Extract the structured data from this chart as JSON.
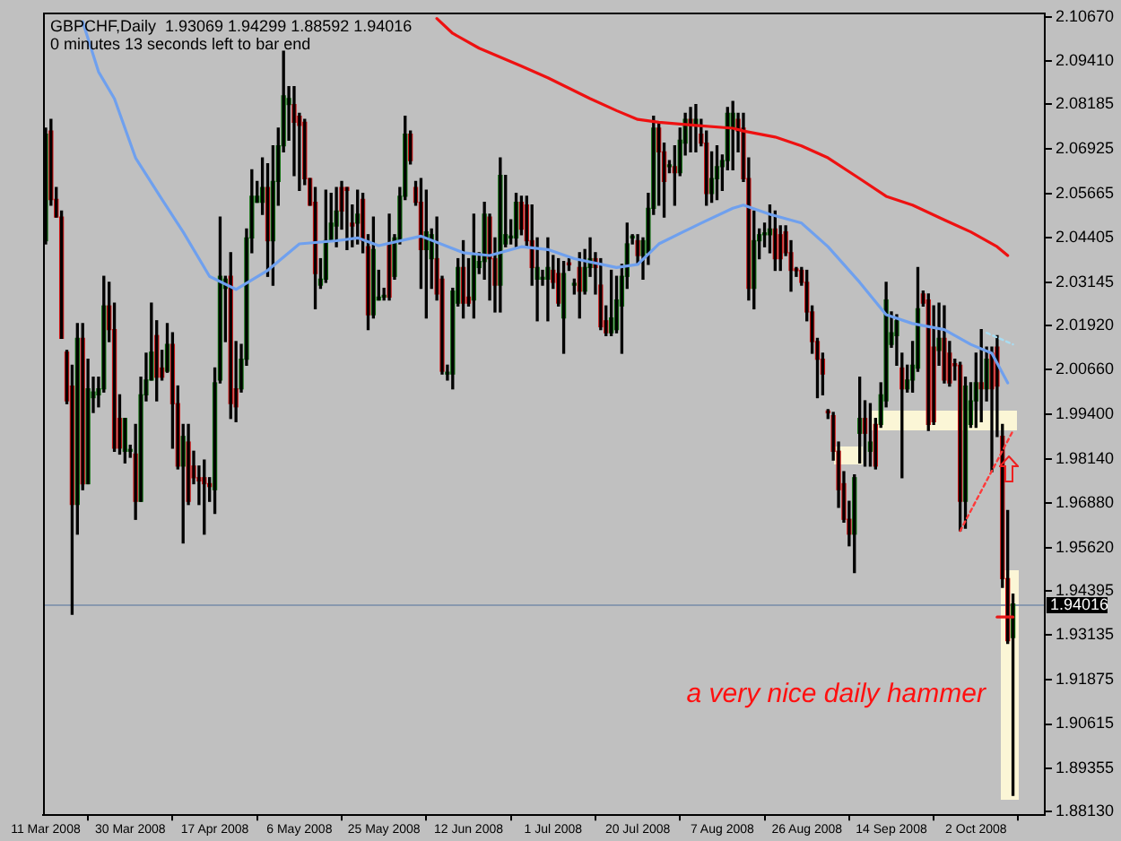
{
  "chart_data": {
    "type": "candlestick",
    "title": "GBPCHF,Daily  1.93069 1.94299 1.88592 1.94016",
    "subtitle": "0 minutes 13 seconds left to bar end",
    "categories": [
      "11 Mar 2008",
      null,
      null,
      null,
      null,
      null,
      null,
      null,
      null,
      null,
      null,
      null,
      null,
      null,
      null,
      null,
      "30 Mar 2008",
      null,
      null,
      null,
      null,
      null,
      null,
      null,
      null,
      null,
      null,
      null,
      null,
      null,
      null,
      null,
      "17 Apr 2008",
      null,
      null,
      null,
      null,
      null,
      null,
      null,
      null,
      null,
      null,
      null,
      null,
      null,
      null,
      null,
      "6 May 2008",
      null,
      null,
      null,
      null,
      null,
      null,
      null,
      null,
      null,
      null,
      null,
      null,
      null,
      null,
      null,
      "25 May 2008",
      null,
      null,
      null,
      null,
      null,
      null,
      null,
      null,
      null,
      null,
      null,
      null,
      null,
      null,
      null,
      "12 Jun 2008",
      null,
      null,
      null,
      null,
      null,
      null,
      null,
      null,
      null,
      null,
      null,
      null,
      null,
      null,
      null,
      "1 Jul 2008",
      null,
      null,
      null,
      null,
      null,
      null,
      null,
      null,
      null,
      null,
      null,
      null,
      null,
      null,
      null,
      "20 Jul 2008",
      null,
      null,
      null,
      null,
      null,
      null,
      null,
      null,
      null,
      null,
      null,
      null,
      null,
      null,
      null,
      "7 Aug 2008",
      null,
      null,
      null,
      null,
      null,
      null,
      null,
      null,
      null,
      null,
      null,
      null,
      null,
      null,
      null,
      "26 Aug 2008",
      null,
      null,
      null,
      null,
      null,
      null,
      null,
      null,
      null,
      null,
      null,
      null,
      null,
      null,
      null,
      "14 Sep 2008",
      null,
      null,
      null,
      null,
      null,
      null,
      null,
      null,
      null,
      null,
      null,
      null,
      null,
      null,
      null,
      "2 Oct 2008",
      null,
      null,
      null,
      null,
      null,
      null,
      null
    ],
    "ohlc": [
      [
        2.0432,
        2.0751,
        2.0423,
        2.0734
      ],
      [
        2.0743,
        2.0776,
        2.0533,
        2.0549
      ],
      [
        2.0549,
        2.0583,
        2.0499,
        2.0499
      ],
      [
        2.0499,
        2.0516,
        2.0155,
        2.0155
      ],
      [
        2.0116,
        2.0121,
        1.997,
        1.9978
      ],
      [
        2.002,
        2.0079,
        1.9373,
        1.9684
      ],
      [
        1.9684,
        2.0197,
        1.96,
        2.0155
      ],
      [
        2.0155,
        2.0197,
        1.9726,
        1.9743
      ],
      [
        1.9743,
        2.0096,
        1.9743,
        2.0012
      ],
      [
        1.9987,
        2.0045,
        1.9945,
        2.0003
      ],
      [
        1.9995,
        2.0045,
        1.9961,
        2.0012
      ],
      [
        2.0012,
        2.0331,
        2.0003,
        2.0247
      ],
      [
        2.0247,
        2.0314,
        2.0146,
        2.018
      ],
      [
        2.018,
        2.0255,
        1.9835,
        1.9844
      ],
      [
        1.9928,
        1.9995,
        1.9827,
        1.9844
      ],
      [
        1.9835,
        1.9928,
        1.9802,
        1.9928
      ],
      [
        1.9835,
        1.9852,
        1.9818,
        1.9838
      ],
      [
        1.9827,
        1.9911,
        1.9642,
        1.9693
      ],
      [
        1.9693,
        2.0045,
        1.9693,
        1.9995
      ],
      [
        1.9995,
        2.0113,
        1.9978,
        2.0037
      ],
      [
        2.0037,
        2.0255,
        2.0037,
        2.0116
      ],
      [
        2.0163,
        2.0205,
        1.9978,
        2.0045
      ],
      [
        2.0071,
        2.0121,
        2.0037,
        2.0045
      ],
      [
        2.0062,
        2.0197,
        2.0059,
        2.0138
      ],
      [
        2.0138,
        2.0171,
        1.9844,
        1.997
      ],
      [
        1.997,
        2.002,
        1.9785,
        1.9793
      ],
      [
        1.9793,
        1.9911,
        1.9575,
        1.9877
      ],
      [
        1.9861,
        1.9911,
        1.9684,
        1.9693
      ],
      [
        1.9793,
        1.9835,
        1.9743,
        1.976
      ],
      [
        1.976,
        1.9793,
        1.9684,
        1.9751
      ],
      [
        1.976,
        1.981,
        1.96,
        1.9743
      ],
      [
        1.9743,
        1.976,
        1.9693,
        1.9735
      ],
      [
        1.9726,
        2.0071,
        1.9659,
        2.0029
      ],
      [
        2.0037,
        2.0499,
        2.0029,
        2.0331
      ],
      [
        2.0297,
        2.0331,
        2.0146,
        2.0323
      ],
      [
        2.0331,
        2.0398,
        1.9928,
        1.997
      ],
      [
        2.0012,
        2.0146,
        1.9919,
        1.9961
      ],
      [
        2.0012,
        2.0138,
        2.0003,
        2.0096
      ],
      [
        2.0096,
        2.0465,
        2.0079,
        2.044
      ],
      [
        2.044,
        2.0633,
        2.0398,
        2.0558
      ],
      [
        2.0541,
        2.06,
        2.0541,
        2.0558
      ],
      [
        2.0541,
        2.0667,
        2.0507,
        2.0583
      ],
      [
        2.0583,
        2.065,
        2.0331,
        2.0432
      ],
      [
        2.0432,
        2.0701,
        2.0306,
        2.06
      ],
      [
        2.06,
        2.0751,
        2.0533,
        2.0701
      ],
      [
        2.0701,
        2.0969,
        2.0684,
        2.0843
      ],
      [
        2.0818,
        2.0869,
        2.0717,
        2.0835
      ],
      [
        2.0818,
        2.0869,
        2.0617,
        2.0768
      ],
      [
        2.0785,
        2.0793,
        2.0575,
        2.0759
      ],
      [
        2.0768,
        2.0776,
        2.0591,
        2.0608
      ],
      [
        2.0608,
        2.0608,
        2.0533,
        2.0533
      ],
      [
        2.0541,
        2.0583,
        2.0239,
        2.0339
      ],
      [
        2.0306,
        2.0381,
        2.0297,
        2.0323
      ],
      [
        2.0323,
        2.0575,
        2.0314,
        2.0432
      ],
      [
        2.0432,
        2.0566,
        2.0432,
        2.0482
      ],
      [
        2.0474,
        2.0583,
        2.0415,
        2.0516
      ],
      [
        2.0583,
        2.06,
        2.0465,
        2.0516
      ],
      [
        2.0583,
        2.0583,
        2.0407,
        2.0575
      ],
      [
        2.0482,
        2.0533,
        2.0415,
        2.0474
      ],
      [
        2.0482,
        2.0575,
        2.0423,
        2.0507
      ],
      [
        2.0549,
        2.0566,
        2.0398,
        2.0432
      ],
      [
        2.0415,
        2.0449,
        2.018,
        2.0222
      ],
      [
        2.0222,
        2.0499,
        2.0213,
        2.0407
      ],
      [
        2.0264,
        2.0348,
        2.0264,
        2.0272
      ],
      [
        2.0272,
        2.0297,
        2.0264,
        2.0273
      ],
      [
        2.0423,
        2.0507,
        2.0264,
        2.0272
      ],
      [
        2.0331,
        2.0449,
        2.0323,
        2.044
      ],
      [
        2.0432,
        2.0583,
        2.0423,
        2.0558
      ],
      [
        2.0558,
        2.0785,
        2.0549,
        2.0734
      ],
      [
        2.0734,
        2.0743,
        2.065,
        2.0659
      ],
      [
        2.0583,
        2.06,
        2.0533,
        2.0541
      ],
      [
        2.0541,
        2.0608,
        2.0297,
        2.0407
      ],
      [
        2.0407,
        2.0575,
        2.0213,
        2.0457
      ],
      [
        2.0381,
        2.0465,
        2.0297,
        2.0449
      ],
      [
        2.0381,
        2.0499,
        2.0264,
        2.0281
      ],
      [
        2.0323,
        2.0331,
        2.0054,
        2.0062
      ],
      [
        2.0054,
        2.0079,
        2.0037,
        2.0056
      ],
      [
        2.0054,
        2.0297,
        2.0012,
        2.0289
      ],
      [
        2.0255,
        2.0381,
        2.0247,
        2.0356
      ],
      [
        2.0356,
        2.0432,
        2.0213,
        2.0255
      ],
      [
        2.0272,
        2.0381,
        2.0247,
        2.0255
      ],
      [
        2.0264,
        2.0507,
        2.0213,
        2.039
      ],
      [
        2.0356,
        2.0398,
        2.0339,
        2.0373
      ],
      [
        2.0373,
        2.0541,
        2.0323,
        2.0507
      ],
      [
        2.0499,
        2.0507,
        2.0264,
        2.0381
      ],
      [
        2.0381,
        2.044,
        2.023,
        2.0306
      ],
      [
        2.0306,
        2.0667,
        2.023,
        2.0617
      ],
      [
        2.0423,
        2.0617,
        2.0415,
        2.0449
      ],
      [
        2.044,
        2.0491,
        2.0423,
        2.0441
      ],
      [
        2.044,
        2.0566,
        2.0415,
        2.0541
      ],
      [
        2.0541,
        2.0558,
        2.0449,
        2.0465
      ],
      [
        2.0533,
        2.0558,
        2.0415,
        2.0432
      ],
      [
        2.0432,
        2.0533,
        2.0306,
        2.0356
      ],
      [
        2.0323,
        2.044,
        2.0205,
        2.0356
      ],
      [
        2.0323,
        2.0348,
        2.0306,
        2.0324
      ],
      [
        2.0323,
        2.044,
        2.0205,
        2.0356
      ],
      [
        2.0348,
        2.039,
        2.0297,
        2.0314
      ],
      [
        2.0339,
        2.0381,
        2.0247,
        2.0255
      ],
      [
        2.0213,
        2.0373,
        2.0113,
        2.0339
      ],
      [
        2.0365,
        2.0381,
        2.0348,
        2.0364
      ],
      [
        2.0306,
        2.0323,
        2.0281,
        2.0307
      ],
      [
        2.0356,
        2.0398,
        2.0213,
        2.0289
      ],
      [
        2.0289,
        2.0407,
        2.0281,
        2.0356
      ],
      [
        2.0356,
        2.044,
        2.0331,
        2.0381
      ],
      [
        2.0381,
        2.0398,
        2.0281,
        2.0356
      ],
      [
        2.0306,
        2.0381,
        2.018,
        2.0188
      ],
      [
        2.0205,
        2.0247,
        2.0163,
        2.0171
      ],
      [
        2.0171,
        2.0348,
        2.0163,
        2.0213
      ],
      [
        2.018,
        2.0331,
        2.0171,
        2.0264
      ],
      [
        2.0247,
        2.0365,
        2.0113,
        2.0331
      ],
      [
        2.0331,
        2.0482,
        2.0297,
        2.0423
      ],
      [
        2.044,
        2.0449,
        2.0423,
        2.0441
      ],
      [
        2.0432,
        2.0449,
        2.0365,
        2.039
      ],
      [
        2.039,
        2.044,
        2.0323,
        2.0432
      ],
      [
        2.0398,
        2.0566,
        2.0365,
        2.0524
      ],
      [
        2.0524,
        2.0785,
        2.0507,
        2.0751
      ],
      [
        2.0751,
        2.0768,
        2.0533,
        2.0684
      ],
      [
        2.0684,
        2.0709,
        2.0499,
        2.06
      ],
      [
        2.0642,
        2.0659,
        2.0625,
        2.0643
      ],
      [
        2.0642,
        2.0701,
        2.0533,
        2.0625
      ],
      [
        2.0625,
        2.0751,
        2.0617,
        2.0717
      ],
      [
        2.0709,
        2.0793,
        2.0675,
        2.0776
      ],
      [
        2.0776,
        2.081,
        2.0684,
        2.0759
      ],
      [
        2.0759,
        2.0818,
        2.0684,
        2.0776
      ],
      [
        2.0734,
        2.0776,
        2.0701,
        2.0709
      ],
      [
        2.0709,
        2.0743,
        2.0533,
        2.0566
      ],
      [
        2.0566,
        2.0684,
        2.0541,
        2.0608
      ],
      [
        2.0608,
        2.0701,
        2.0549,
        2.0642
      ],
      [
        2.0642,
        2.0675,
        2.0575,
        2.0659
      ],
      [
        2.0659,
        2.081,
        2.0633,
        2.0793
      ],
      [
        2.0751,
        2.0827,
        2.0633,
        2.0793
      ],
      [
        2.0776,
        2.0793,
        2.0684,
        2.0743
      ],
      [
        2.0751,
        2.0793,
        2.06,
        2.0608
      ],
      [
        2.0608,
        2.0667,
        2.0264,
        2.0297
      ],
      [
        2.0297,
        2.0516,
        2.0239,
        2.0432
      ],
      [
        2.0432,
        2.0465,
        2.0381,
        2.0449
      ],
      [
        2.0449,
        2.0482,
        2.0415,
        2.045
      ],
      [
        2.0449,
        2.0533,
        2.0398,
        2.0465
      ],
      [
        2.0465,
        2.0516,
        2.0348,
        2.0381
      ],
      [
        2.0449,
        2.0474,
        2.0348,
        2.0381
      ],
      [
        2.0457,
        2.0474,
        2.039,
        2.0398
      ],
      [
        2.0398,
        2.0432,
        2.0289,
        2.0348
      ],
      [
        2.0348,
        2.0356,
        2.0331,
        2.0347
      ],
      [
        2.0348,
        2.0356,
        2.0306,
        2.0314
      ],
      [
        2.0314,
        2.0348,
        2.0205,
        2.023
      ],
      [
        2.023,
        2.0247,
        2.0113,
        2.0146
      ],
      [
        2.0146,
        2.0155,
        1.9987,
        2.0096
      ],
      [
        2.0096,
        2.0113,
        1.9995,
        2.0054
      ],
      [
        1.9945,
        1.9953,
        1.9928,
        1.9944
      ],
      [
        1.9936,
        1.9945,
        1.981,
        1.9835
      ],
      [
        1.9835,
        1.9861,
        1.9676,
        1.9726
      ],
      [
        1.9743,
        1.9777,
        1.9634,
        1.9642
      ],
      [
        1.9642,
        1.9693,
        1.9567,
        1.96
      ],
      [
        1.96,
        1.9768,
        1.9491,
        1.976
      ],
      [
        1.9886,
        2.0045,
        1.9802,
        1.9928
      ],
      [
        1.9928,
        1.9978,
        1.9793,
        1.9886
      ],
      [
        1.9835,
        1.997,
        1.9793,
        1.9861
      ],
      [
        1.9911,
        1.9928,
        1.9785,
        1.9793
      ],
      [
        1.9911,
        2.0029,
        1.9903,
        1.9995
      ],
      [
        1.9978,
        2.0314,
        1.9961,
        2.0264
      ],
      [
        2.0138,
        2.023,
        2.013,
        2.0171
      ],
      [
        2.0163,
        2.0222,
        2.0079,
        2.0205
      ],
      [
        2.0071,
        2.0113,
        1.976,
        2.0012
      ],
      [
        2.0012,
        2.0079,
        2.0003,
        2.0037
      ],
      [
        2.0037,
        2.0146,
        2.0003,
        2.0079
      ],
      [
        2.0071,
        2.0356,
        2.0062,
        2.0239
      ],
      [
        2.0281,
        2.0289,
        2.0247,
        2.0255
      ],
      [
        2.0264,
        2.0281,
        1.9894,
        1.9911
      ],
      [
        2.013,
        2.0247,
        1.9911,
        1.9919
      ],
      [
        2.0121,
        2.0255,
        2.0079,
        2.0155
      ],
      [
        2.0155,
        2.0247,
        2.0029,
        2.0037
      ],
      [
        2.0113,
        2.0146,
        2.002,
        2.0029
      ],
      [
        2.0079,
        2.0096,
        2.0037,
        2.0078
      ],
      [
        2.0079,
        2.0087,
        1.9609,
        1.9693
      ],
      [
        1.9693,
        2.0045,
        1.9617,
        2.002
      ],
      [
        1.9911,
        2.0029,
        1.9903,
        1.9978
      ],
      [
        1.9978,
        2.0113,
        1.9903,
        2.0029
      ],
      [
        2.0029,
        2.018,
        1.9919,
        2.0012
      ],
      [
        2.0012,
        2.013,
        1.9978,
        2.0096
      ],
      [
        2.0113,
        2.013,
        1.9777,
        2.0012
      ],
      [
        2.013,
        2.0163,
        1.9877,
        2.002
      ],
      [
        1.9877,
        1.9911,
        1.9449,
        1.9474
      ],
      [
        1.9474,
        1.9667,
        1.929,
        1.9298
      ],
      [
        1.93069,
        1.94299,
        1.88592,
        1.94016
      ]
    ],
    "colors": [
      "#0b6e0b",
      "#d01010",
      "#d01010",
      "#d01010",
      "#d01010",
      "#d01010",
      "#0b6e0b",
      "#d01010",
      "#0b6e0b",
      "#0b6e0b",
      "#0b6e0b",
      "#0b6e0b",
      "#d01010",
      "#d01010",
      "#d01010",
      "#0b6e0b",
      "#0b6e0b",
      "#d01010",
      "#0b6e0b",
      "#0b6e0b",
      "#0b6e0b",
      "#d01010",
      "#d01010",
      "#0b6e0b",
      "#d01010",
      "#d01010",
      "#0b6e0b",
      "#d01010",
      "#d01010",
      "#d01010",
      "#d01010",
      "#d01010",
      "#0b6e0b",
      "#0b6e0b",
      "#0b6e0b",
      "#d01010",
      "#d01010",
      "#0b6e0b",
      "#0b6e0b",
      "#0b6e0b",
      "#0b6e0b",
      "#0b6e0b",
      "#d01010",
      "#0b6e0b",
      "#0b6e0b",
      "#0b6e0b",
      "#0b6e0b",
      "#d01010",
      "#d01010",
      "#d01010",
      "#d01010",
      "#d01010",
      "#0b6e0b",
      "#0b6e0b",
      "#0b6e0b",
      "#0b6e0b",
      "#d01010",
      "#d01010",
      "#d01010",
      "#0b6e0b",
      "#d01010",
      "#d01010",
      "#0b6e0b",
      "#0b6e0b",
      "#0b6e0b",
      "#d01010",
      "#0b6e0b",
      "#0b6e0b",
      "#0b6e0b",
      "#d01010",
      "#d01010",
      "#d01010",
      "#0b6e0b",
      "#0b6e0b",
      "#d01010",
      "#d01010",
      "#0b6e0b",
      "#0b6e0b",
      "#0b6e0b",
      "#d01010",
      "#d01010",
      "#0b6e0b",
      "#0b6e0b",
      "#0b6e0b",
      "#d01010",
      "#d01010",
      "#0b6e0b",
      "#0b6e0b",
      "#0b6e0b",
      "#0b6e0b",
      "#d01010",
      "#d01010",
      "#d01010",
      "#0b6e0b",
      "#0b6e0b",
      "#0b6e0b",
      "#d01010",
      "#d01010",
      "#0b6e0b",
      "#d01010",
      "#0b6e0b",
      "#d01010",
      "#0b6e0b",
      "#0b6e0b",
      "#d01010",
      "#d01010",
      "#d01010",
      "#0b6e0b",
      "#0b6e0b",
      "#0b6e0b",
      "#0b6e0b",
      "#0b6e0b",
      "#d01010",
      "#0b6e0b",
      "#0b6e0b",
      "#0b6e0b",
      "#d01010",
      "#d01010",
      "#0b6e0b",
      "#d01010",
      "#0b6e0b",
      "#0b6e0b",
      "#d01010",
      "#0b6e0b",
      "#d01010",
      "#d01010",
      "#0b6e0b",
      "#0b6e0b",
      "#0b6e0b",
      "#0b6e0b",
      "#0b6e0b",
      "#d01010",
      "#d01010",
      "#d01010",
      "#0b6e0b",
      "#0b6e0b",
      "#0b6e0b",
      "#0b6e0b",
      "#d01010",
      "#d01010",
      "#d01010",
      "#d01010",
      "#d01010",
      "#d01010",
      "#d01010",
      "#d01010",
      "#d01010",
      "#d01010",
      "#d01010",
      "#d01010",
      "#d01010",
      "#d01010",
      "#d01010",
      "#0b6e0b",
      "#0b6e0b",
      "#d01010",
      "#0b6e0b",
      "#d01010",
      "#0b6e0b",
      "#0b6e0b",
      "#0b6e0b",
      "#0b6e0b",
      "#d01010",
      "#0b6e0b",
      "#0b6e0b",
      "#0b6e0b",
      "#d01010",
      "#d01010",
      "#d01010",
      "#0b6e0b",
      "#d01010",
      "#d01010",
      "#d01010",
      "#d01010",
      "#0b6e0b",
      "#0b6e0b",
      "#0b6e0b",
      "#d01010",
      "#0b6e0b",
      "#d01010",
      "#d01010",
      "#d01010",
      "#d01010",
      "#0b6e0b"
    ],
    "series": [
      {
        "type": "line",
        "color": "#6fa0ee",
        "values": [
          null,
          null,
          null,
          null,
          null,
          null,
          null,
          2.1053,
          null,
          null,
          2.0911,
          null,
          null,
          2.0835,
          null,
          null,
          null,
          2.0667,
          null,
          null,
          null,
          null,
          2.0549,
          null,
          null,
          null,
          2.0457,
          null,
          null,
          null,
          null,
          2.0331,
          null,
          null,
          null,
          null,
          2.0294,
          null,
          null,
          null,
          null,
          null,
          2.0348,
          null,
          null,
          null,
          null,
          null,
          2.0423,
          null,
          null,
          null,
          null,
          null,
          null,
          2.0432,
          null,
          null,
          null,
          2.044,
          null,
          null,
          null,
          2.0418,
          null,
          null,
          null,
          null,
          null,
          null,
          null,
          2.0445,
          null,
          null,
          null,
          null,
          null,
          null,
          null,
          2.0398,
          null,
          null,
          null,
          null,
          2.039,
          null,
          null,
          null,
          null,
          null,
          2.0415,
          null,
          null,
          null,
          null,
          2.0407,
          null,
          null,
          null,
          null,
          2.0381,
          null,
          null,
          null,
          null,
          null,
          null,
          null,
          2.0356,
          null,
          null,
          null,
          2.0365,
          null,
          null,
          null,
          2.0423,
          null,
          null,
          null,
          null,
          null,
          null,
          null,
          2.0482,
          null,
          null,
          null,
          null,
          null,
          2.0524,
          null,
          2.0533,
          null,
          null,
          null,
          null,
          2.0507,
          null,
          null,
          null,
          null,
          null,
          2.0482,
          null,
          null,
          null,
          null,
          2.0415,
          null,
          null,
          null,
          null,
          null,
          2.0314,
          null,
          null,
          null,
          null,
          2.0222,
          null,
          null,
          null,
          null,
          2.0197,
          null,
          null,
          null,
          null,
          null,
          2.018,
          null,
          null,
          null,
          null,
          2.0138,
          null,
          null,
          null,
          2.0113,
          null,
          null,
          2.0029,
          null
        ]
      },
      {
        "type": "line",
        "color": "#ee1111",
        "values": [
          null,
          null,
          null,
          null,
          null,
          null,
          null,
          null,
          null,
          null,
          null,
          null,
          null,
          null,
          null,
          null,
          null,
          null,
          null,
          null,
          null,
          null,
          null,
          null,
          null,
          null,
          null,
          null,
          null,
          null,
          null,
          null,
          null,
          null,
          null,
          null,
          null,
          null,
          null,
          null,
          null,
          null,
          null,
          null,
          null,
          null,
          null,
          null,
          null,
          null,
          null,
          null,
          null,
          null,
          null,
          null,
          null,
          null,
          null,
          null,
          null,
          null,
          null,
          null,
          null,
          null,
          null,
          null,
          null,
          null,
          null,
          null,
          null,
          null,
          2.1062,
          null,
          null,
          2.102,
          null,
          null,
          null,
          null,
          2.0978,
          null,
          null,
          null,
          null,
          null,
          null,
          null,
          2.0927,
          null,
          null,
          null,
          null,
          2.0894,
          null,
          null,
          null,
          null,
          null,
          null,
          null,
          2.0835,
          null,
          null,
          null,
          null,
          2.0801,
          null,
          null,
          null,
          2.0776,
          null,
          null,
          null,
          2.0768,
          null,
          null,
          null,
          null,
          null,
          null,
          2.0759,
          null,
          null,
          null,
          null,
          null,
          null,
          2.0751,
          null,
          2.0743,
          null,
          null,
          null,
          null,
          null,
          2.0726,
          null,
          null,
          null,
          null,
          2.0701,
          null,
          null,
          null,
          null,
          2.0667,
          null,
          null,
          null,
          null,
          null,
          2.0608,
          null,
          null,
          null,
          null,
          2.0558,
          null,
          null,
          null,
          null,
          2.0533,
          null,
          null,
          null,
          null,
          null,
          2.0491,
          null,
          null,
          null,
          null,
          2.0457,
          null,
          null,
          null,
          null,
          2.0415,
          null,
          2.039,
          null
        ]
      },
      {
        "type": "line",
        "color": "#ff3a3a",
        "line_style": "dotted",
        "values": [
          null,
          null,
          null,
          null,
          null,
          null,
          null,
          null,
          null,
          null,
          null,
          null,
          null,
          null,
          null,
          null,
          null,
          null,
          null,
          null,
          null,
          null,
          null,
          null,
          null,
          null,
          null,
          null,
          null,
          null,
          null,
          null,
          null,
          null,
          null,
          null,
          null,
          null,
          null,
          null,
          null,
          null,
          null,
          null,
          null,
          null,
          null,
          null,
          null,
          null,
          null,
          null,
          null,
          null,
          null,
          null,
          null,
          null,
          null,
          null,
          null,
          null,
          null,
          null,
          null,
          null,
          null,
          null,
          null,
          null,
          null,
          null,
          null,
          null,
          null,
          null,
          null,
          null,
          null,
          null,
          null,
          null,
          null,
          null,
          null,
          null,
          null,
          null,
          null,
          null,
          null,
          null,
          null,
          null,
          null,
          null,
          null,
          null,
          null,
          null,
          null,
          null,
          null,
          null,
          null,
          null,
          null,
          null,
          null,
          null,
          null,
          null,
          null,
          null,
          null,
          null,
          null,
          null,
          null,
          null,
          null,
          null,
          null,
          null,
          null,
          null,
          null,
          null,
          null,
          null,
          null,
          null,
          null,
          null,
          null,
          null,
          null,
          null,
          null,
          null,
          null,
          null,
          null,
          null,
          null,
          null,
          null,
          null,
          null,
          null,
          null,
          null,
          null,
          null,
          null,
          null,
          null,
          null,
          null,
          null,
          null,
          null,
          null,
          null,
          null,
          null,
          null,
          null,
          null,
          null,
          null,
          null,
          null,
          1.9609,
          null,
          null,
          null,
          null,
          null,
          null,
          null,
          null,
          null,
          1.9893
        ]
      },
      {
        "type": "line",
        "color": "#a8dcf2",
        "line_style": "dotted",
        "values": [
          null,
          null,
          null,
          null,
          null,
          null,
          null,
          null,
          null,
          null,
          null,
          null,
          null,
          null,
          null,
          null,
          null,
          null,
          null,
          null,
          null,
          null,
          null,
          null,
          null,
          null,
          null,
          null,
          null,
          null,
          null,
          null,
          null,
          null,
          null,
          null,
          null,
          null,
          null,
          null,
          null,
          null,
          null,
          null,
          null,
          null,
          null,
          null,
          null,
          null,
          null,
          null,
          null,
          null,
          null,
          null,
          null,
          null,
          null,
          null,
          null,
          null,
          null,
          null,
          null,
          null,
          null,
          null,
          null,
          null,
          null,
          null,
          null,
          null,
          null,
          null,
          null,
          null,
          null,
          null,
          null,
          null,
          null,
          null,
          null,
          null,
          null,
          null,
          null,
          null,
          null,
          null,
          null,
          null,
          null,
          null,
          null,
          null,
          null,
          null,
          null,
          null,
          null,
          null,
          null,
          null,
          null,
          null,
          null,
          null,
          null,
          null,
          null,
          null,
          null,
          null,
          null,
          null,
          null,
          null,
          null,
          null,
          null,
          null,
          null,
          null,
          null,
          null,
          null,
          null,
          null,
          null,
          null,
          null,
          null,
          null,
          null,
          null,
          null,
          null,
          null,
          null,
          null,
          null,
          null,
          null,
          null,
          null,
          null,
          null,
          null,
          null,
          null,
          null,
          null,
          null,
          null,
          null,
          null,
          null,
          null,
          null,
          null,
          null,
          null,
          null,
          null,
          null,
          null,
          null,
          null,
          null,
          null,
          null,
          null,
          null,
          null,
          null,
          2.0171,
          null,
          null,
          null,
          null,
          2.0138
        ]
      },
      {
        "type": "line",
        "color": "#e81818",
        "values": [
          null,
          null,
          null,
          null,
          null,
          null,
          null,
          null,
          null,
          null,
          null,
          null,
          null,
          null,
          null,
          null,
          null,
          null,
          null,
          null,
          null,
          null,
          null,
          null,
          null,
          null,
          null,
          null,
          null,
          null,
          null,
          null,
          null,
          null,
          null,
          null,
          null,
          null,
          null,
          null,
          null,
          null,
          null,
          null,
          null,
          null,
          null,
          null,
          null,
          null,
          null,
          null,
          null,
          null,
          null,
          null,
          null,
          null,
          null,
          null,
          null,
          null,
          null,
          null,
          null,
          null,
          null,
          null,
          null,
          null,
          null,
          null,
          null,
          null,
          null,
          null,
          null,
          null,
          null,
          null,
          null,
          null,
          null,
          null,
          null,
          null,
          null,
          null,
          null,
          null,
          null,
          null,
          null,
          null,
          null,
          null,
          null,
          null,
          null,
          null,
          null,
          null,
          null,
          null,
          null,
          null,
          null,
          null,
          null,
          null,
          null,
          null,
          null,
          null,
          null,
          null,
          null,
          null,
          null,
          null,
          null,
          null,
          null,
          null,
          null,
          null,
          null,
          null,
          null,
          null,
          null,
          null,
          null,
          null,
          null,
          null,
          null,
          null,
          null,
          null,
          null,
          null,
          null,
          null,
          null,
          null,
          null,
          null,
          null,
          null,
          null,
          null,
          null,
          null,
          null,
          null,
          null,
          null,
          null,
          null,
          null,
          null,
          null,
          null,
          null,
          null,
          null,
          null,
          null,
          null,
          null,
          null,
          null,
          null,
          null,
          null,
          null,
          null,
          null,
          null,
          1.9365,
          null,
          null,
          1.9365
        ]
      }
    ],
    "ylim": [
      1.8803,
      2.1077
    ],
    "yticks": [
      {
        "value": 2.1067,
        "label": "2.10670"
      },
      {
        "value": 2.0941,
        "label": "2.09410"
      },
      {
        "value": 2.08185,
        "label": "2.08185"
      },
      {
        "value": 2.06925,
        "label": "2.06925"
      },
      {
        "value": 2.05665,
        "label": "2.05665"
      },
      {
        "value": 2.04405,
        "label": "2.04405"
      },
      {
        "value": 2.03145,
        "label": "2.03145"
      },
      {
        "value": 2.0192,
        "label": "2.01920"
      },
      {
        "value": 2.0066,
        "label": "2.00660"
      },
      {
        "value": 1.994,
        "label": "1.99400"
      },
      {
        "value": 1.9814,
        "label": "1.98140"
      },
      {
        "value": 1.9688,
        "label": "1.96880"
      },
      {
        "value": 1.9562,
        "label": "1.95620"
      },
      {
        "value": 1.94395,
        "label": "1.94395"
      },
      {
        "value": 1.93135,
        "label": "1.93135"
      },
      {
        "value": 1.91875,
        "label": "1.91875"
      },
      {
        "value": 1.90615,
        "label": "1.90615"
      },
      {
        "value": 1.89355,
        "label": "1.89355"
      },
      {
        "value": 1.8813,
        "label": "1.88130"
      }
    ],
    "ref_lines": [
      {
        "axis": "y",
        "value": 1.94016,
        "label": "1.94016",
        "color": "#8898ae"
      }
    ],
    "annotations": [
      "a very nice daily hammer"
    ],
    "legend": false,
    "grid": false
  }
}
